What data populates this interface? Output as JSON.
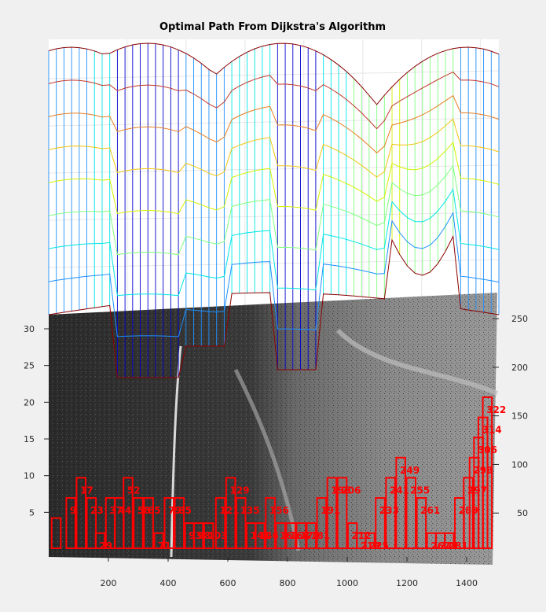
{
  "chart_data": {
    "type": "surface-3d",
    "title": "Optimal Path From Dijkstra's Algorithm",
    "x_ticks": [
      200,
      400,
      600,
      800,
      1000,
      1200,
      1400
    ],
    "z_ticks": [
      5,
      10,
      15,
      20,
      25,
      30
    ],
    "y_ticks": [
      50,
      100,
      150,
      200,
      250
    ],
    "xlim": [
      0,
      1500
    ],
    "zlim": [
      0,
      33
    ],
    "ylim": [
      0,
      280
    ],
    "grid": "on",
    "path_colors": {
      "path": "#ff0000",
      "mesh_high": "#8b0000",
      "mesh_low": "#00008b"
    },
    "path_nodes": [
      {
        "id": "",
        "x": 10,
        "h": 6
      },
      {
        "id": "9",
        "x": 60,
        "h": 10
      },
      {
        "id": "17",
        "x": 95,
        "h": 14
      },
      {
        "id": "23",
        "x": 130,
        "h": 10
      },
      {
        "id": "29",
        "x": 160,
        "h": 3
      },
      {
        "id": "37",
        "x": 195,
        "h": 10
      },
      {
        "id": "44",
        "x": 225,
        "h": 10
      },
      {
        "id": "52",
        "x": 255,
        "h": 14
      },
      {
        "id": "58",
        "x": 290,
        "h": 10
      },
      {
        "id": "65",
        "x": 325,
        "h": 10
      },
      {
        "id": "71",
        "x": 360,
        "h": 3
      },
      {
        "id": "79",
        "x": 395,
        "h": 10
      },
      {
        "id": "85",
        "x": 430,
        "h": 10
      },
      {
        "id": "93",
        "x": 465,
        "h": 5
      },
      {
        "id": "98",
        "x": 495,
        "h": 5
      },
      {
        "id": "103",
        "x": 530,
        "h": 5
      },
      {
        "id": "121",
        "x": 570,
        "h": 10
      },
      {
        "id": "129",
        "x": 605,
        "h": 14
      },
      {
        "id": "135",
        "x": 640,
        "h": 10
      },
      {
        "id": "141",
        "x": 675,
        "h": 5
      },
      {
        "id": "146",
        "x": 705,
        "h": 5
      },
      {
        "id": "156",
        "x": 740,
        "h": 10
      },
      {
        "id": "161",
        "x": 775,
        "h": 5
      },
      {
        "id": "168",
        "x": 810,
        "h": 5
      },
      {
        "id": "173",
        "x": 845,
        "h": 5
      },
      {
        "id": "181",
        "x": 880,
        "h": 5
      },
      {
        "id": "191",
        "x": 915,
        "h": 10
      },
      {
        "id": "196",
        "x": 950,
        "h": 14
      },
      {
        "id": "206",
        "x": 985,
        "h": 14
      },
      {
        "id": "212",
        "x": 1020,
        "h": 5
      },
      {
        "id": "219",
        "x": 1050,
        "h": 3
      },
      {
        "id": "225",
        "x": 1080,
        "h": 3
      },
      {
        "id": "233",
        "x": 1115,
        "h": 10
      },
      {
        "id": "241",
        "x": 1150,
        "h": 14
      },
      {
        "id": "249",
        "x": 1185,
        "h": 18
      },
      {
        "id": "255",
        "x": 1220,
        "h": 14
      },
      {
        "id": "261",
        "x": 1255,
        "h": 10
      },
      {
        "id": "267",
        "x": 1290,
        "h": 3
      },
      {
        "id": "271",
        "x": 1320,
        "h": 3
      },
      {
        "id": "281",
        "x": 1350,
        "h": 3
      },
      {
        "id": "289",
        "x": 1385,
        "h": 10
      },
      {
        "id": "297",
        "x": 1415,
        "h": 14
      },
      {
        "id": "298",
        "x": 1435,
        "h": 18
      },
      {
        "id": "306",
        "x": 1450,
        "h": 22
      },
      {
        "id": "314",
        "x": 1465,
        "h": 26
      },
      {
        "id": "322",
        "x": 1480,
        "h": 30
      }
    ]
  }
}
